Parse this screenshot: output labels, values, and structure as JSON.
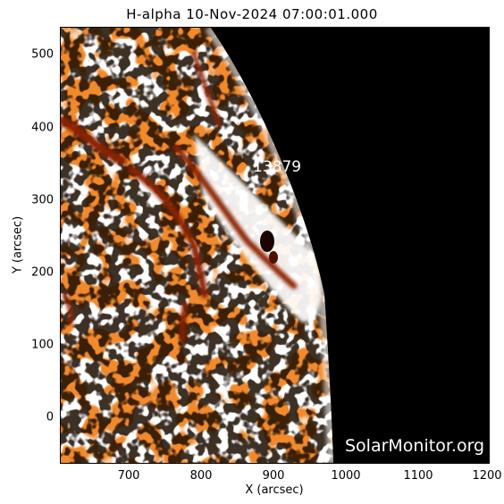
{
  "title": "H-alpha 10-Nov-2024 07:00:01.000",
  "x_axis": {
    "label": "X (arcsec)",
    "ticks": [
      "700",
      "800",
      "900",
      "1000",
      "1100",
      "1200"
    ]
  },
  "y_axis": {
    "label": "Y (arcsec)",
    "ticks": [
      "500",
      "400",
      "300",
      "200",
      "100",
      "0"
    ]
  },
  "region_label": "13879",
  "watermark": "SolarMonitor.org",
  "colors": {
    "sky": "#000000",
    "chromosphere": "#f08a2c",
    "filament": "#8c2400",
    "plage": "#ffffff"
  }
}
